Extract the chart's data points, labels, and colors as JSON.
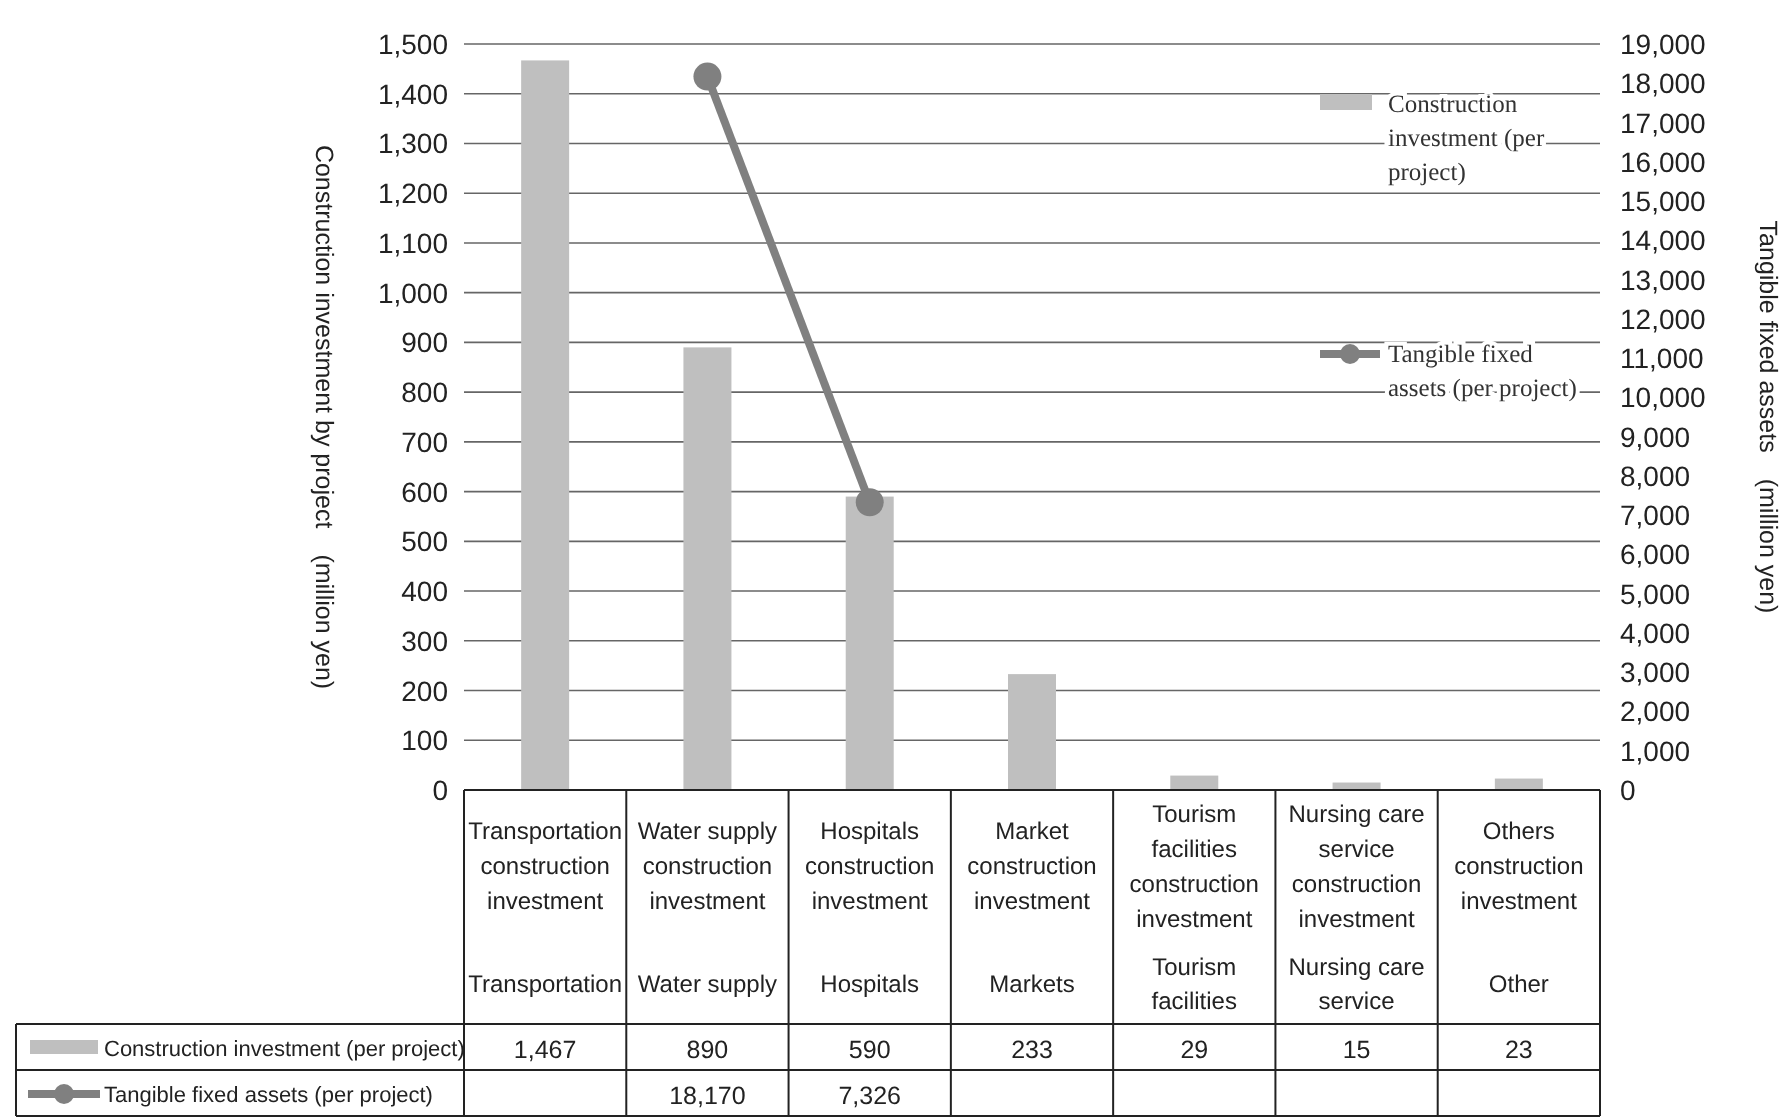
{
  "chart_data": {
    "type": "bar",
    "ylabel": "Construction investment by project　(million yen)",
    "y2label": "Tangible fixed assets　(million yen)",
    "categories": [
      "Transportation construction investment\nTransportation",
      "Water supply construction investment\nWater supply",
      "Hospitals construction investment\nHospitals",
      "Market construction investment\nMarkets",
      "Tourism facilities construction investment\nTourism facilities",
      "Nursing care service construction investment\nNursing care service",
      "Others construction investment\nOther"
    ],
    "series": [
      {
        "name": "Construction investment (per project)",
        "color": "#bfbfbf",
        "values": [
          1467,
          890,
          590,
          233,
          29,
          15,
          23
        ],
        "value_labels": [
          "1,467",
          "890",
          "590",
          "233",
          "29",
          "15",
          "23"
        ]
      },
      {
        "name": "Tangible fixed assets (per project)",
        "type": "line",
        "axis": "y2",
        "color": "#808080",
        "marker": "circle",
        "values": [
          null,
          18170,
          7326,
          null,
          null,
          null,
          null
        ],
        "value_labels": [
          null,
          "18,170",
          "7,326",
          null,
          null,
          null,
          null
        ]
      }
    ],
    "ylim": [
      0,
      1500
    ],
    "yticks": [
      0,
      100,
      200,
      300,
      400,
      500,
      600,
      700,
      800,
      900,
      {
        "value": 1000,
        "label": "1,000"
      },
      {
        "value": 1100,
        "label": "1,100"
      },
      {
        "value": 1200,
        "label": "1,200"
      },
      {
        "value": 1300,
        "label": "1,300"
      },
      {
        "value": 1400,
        "label": "1,400"
      },
      {
        "value": 1500,
        "label": "1,500"
      }
    ],
    "y2lim": [
      0,
      19000
    ],
    "y2ticks": [
      0,
      {
        "value": 1000,
        "label": "1,000"
      },
      {
        "value": 2000,
        "label": "2,000"
      },
      {
        "value": 3000,
        "label": "3,000"
      },
      {
        "value": 4000,
        "label": "4,000"
      },
      {
        "value": 5000,
        "label": "5,000"
      },
      {
        "value": 6000,
        "label": "6,000"
      },
      {
        "value": 7000,
        "label": "7,000"
      },
      {
        "value": 8000,
        "label": "8,000"
      },
      {
        "value": 9000,
        "label": "9,000"
      },
      {
        "value": 10000,
        "label": "10,000"
      },
      {
        "value": 11000,
        "label": "11,000"
      },
      {
        "value": 12000,
        "label": "12,000"
      },
      {
        "value": 13000,
        "label": "13,000"
      },
      {
        "value": 14000,
        "label": "14,000"
      },
      {
        "value": 15000,
        "label": "15,000"
      },
      {
        "value": 16000,
        "label": "16,000"
      },
      {
        "value": 17000,
        "label": "17,000"
      },
      {
        "value": 18000,
        "label": "18,000"
      },
      {
        "value": 19000,
        "label": "19,000"
      }
    ],
    "grid": "y",
    "legend": "top right"
  }
}
